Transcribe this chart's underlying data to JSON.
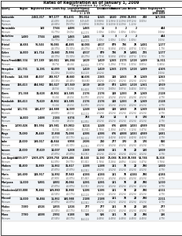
{
  "title1": "Rates of Registration as of January 1, 2009",
  "title2": "Registration by County",
  "col_headers_line1": [
    "County",
    "Region",
    "Registered",
    "Dem. Leads",
    "Rep. Leads",
    "Unaffiliated",
    "Green",
    "Libertarian",
    "Natural Law",
    "Reform",
    "Other",
    "Registered %"
  ],
  "col_headers_line2": [
    "",
    "",
    "",
    "",
    "",
    "(Independent)",
    "",
    "",
    "",
    "",
    "",
    "change"
  ],
  "col_headers_line3": [
    "",
    "",
    "",
    "",
    "",
    "1 / 1/ 09",
    "",
    "",
    "",
    "",
    "",
    "1998-2009"
  ],
  "groups": [
    {
      "name": "Statewide",
      "rows": [
        [
          "Statewide",
          "",
          "2,462,317",
          "997,177",
          "651,431",
          "725,014",
          "8,345",
          "3,040",
          "2,996",
          "23,893",
          "248",
          "167,164"
        ],
        [
          "Minimum",
          "",
          "",
          "(40.49%)",
          "(26.46%)",
          "($29,447)",
          "(0.3388%)",
          "(0.1236%)",
          "(0.1219%)",
          "(0.9712%)",
          "(0.01%)",
          ""
        ],
        [
          "Maximum",
          "",
          "",
          "(43.84%)",
          "(28.57%)",
          "(1.5049%)",
          "(0.3619%)",
          "(0.1415%)",
          "(0.1219%)",
          "(1.22%)",
          "",
          ""
        ]
      ]
    },
    {
      "name": "Barnstable",
      "rows": [
        [
          "Barnstable",
          "",
          "160",
          "7,744",
          "4,486",
          "1,465",
          "11",
          "3",
          "2",
          "2",
          "",
          "444"
        ],
        [
          "Minimum",
          "",
          "",
          "(32.77%)",
          "(19.0%)",
          "($2,177)",
          "(1.00%)",
          "(1.00%)",
          "(1.00%)",
          "(1.00%)",
          "",
          "(100%)"
        ]
      ]
    },
    {
      "name": "Berkshire",
      "rows": [
        [
          "Berkshire",
          "1,480",
          "7,744",
          "4,486",
          "1,465",
          "1,465",
          "11",
          "3",
          "2",
          "2",
          "",
          "444"
        ],
        [
          "Minimum",
          "",
          "",
          "(32.77%)",
          "(19.0%)",
          "($2,177)",
          "(1.00%)",
          "(1.00%)",
          "(1.00%)",
          "(1.00%)",
          "",
          "(100%)"
        ]
      ]
    },
    {
      "name": "Bristol",
      "rows": [
        [
          "Bristol",
          "10,684",
          "96,544",
          "93,086",
          "44,485",
          "$3,086",
          "4,617",
          "879",
          "736",
          "28",
          "1,481",
          "1,177"
        ],
        [
          "Minimum",
          "",
          "",
          "(44.37%)",
          "(22.32%)",
          "(44.27%)",
          "(4.71%)",
          "(5.58%)",
          "(4.91%)",
          "(4.07%)",
          "(1.91%)",
          "(1.7%)"
        ]
      ]
    },
    {
      "name": "Dukes",
      "rows": [
        [
          "Dukes",
          "16,000",
          "101,714",
          "21,660",
          "20,994",
          "4,517",
          "879",
          "736",
          "28",
          "1,481",
          "205",
          "1,177"
        ],
        [
          "Minimum",
          "",
          "",
          "(44.37%)",
          "(22.32%)",
          "(44.27%)",
          "(4.71%)",
          "(5.58%)",
          "(4.91%)",
          "(4.07%)",
          "(1.91%)",
          "(1.7%)"
        ]
      ]
    },
    {
      "name": "Essex/Franklin",
      "rows": [
        [
          "Essex/Franklin",
          "328,334",
          "127,189",
          "110,011",
          "106,284",
          "1,629",
          "1,429",
          "1,265",
          "2,175",
          "1,318",
          "1,489",
          "11,311"
        ],
        [
          "Minimum",
          "",
          "",
          "(38.7%)",
          "(44.4%)",
          "($4,103)",
          "(1.87%)",
          "(1.29%)",
          "(2.75%)",
          "(1.03%)",
          "(0.85%)",
          "(1.86%)"
        ]
      ]
    },
    {
      "name": "Hampden",
      "rows": [
        [
          "Hampden",
          "141,731",
          "11,291",
          "62,699",
          "5,574",
          "1,429",
          "1,429",
          "1,265",
          "2,175",
          "1,318",
          "1,489",
          "4,105"
        ],
        [
          "Minimum",
          "",
          "",
          "(21.22%)",
          "(22.82%)",
          "($2,113)",
          "(4.52%)",
          "",
          "",
          "",
          "",
          "(100%)"
        ]
      ]
    },
    {
      "name": "El Dorado",
      "rows": [
        [
          "El Dorado",
          "114,368",
          "48,007",
          "248,917",
          "49,660",
          "$8,636",
          "2,265",
          "148",
          "1,063",
          "28",
          "1,269",
          "3,263"
        ],
        [
          "Minimum",
          "",
          "",
          "(43.14%)",
          "(43.44%)",
          "($8,636)",
          "(4.52%)",
          "(4.52%)",
          "(4.52%)",
          "(4.52%)",
          "(4.52%)",
          "(4.7%)"
        ]
      ]
    },
    {
      "name": "Fresno",
      "rows": [
        [
          "Fresno",
          "360,413",
          "484,982",
          "350,527",
          "137,569",
          "3,619",
          "3,619",
          "873",
          "1,283",
          "1,318",
          "1,361",
          "3,919"
        ],
        [
          "Minimum",
          "",
          "",
          "(44.5%)",
          "(32.2%)",
          "($2,413)",
          "(3.32%)",
          "(0.80%)",
          "(0.87%)",
          "(0.44%)",
          "(0.87%)",
          "(3.9%)"
        ]
      ]
    },
    {
      "name": "Glenn",
      "rows": [
        [
          "Glenn",
          "171,368",
          "31,628",
          "43,902",
          "103,585",
          "2,176",
          "2,176",
          "148",
          "1,283",
          "29",
          "1,269",
          "2,128"
        ],
        [
          "Minimum",
          "",
          "",
          "(35.4%)",
          "(49.4%)",
          "($2,075)",
          "(4.52%)",
          "(4.52%)",
          "(4.52%)",
          "(4.52%)",
          "(4.52%)",
          "(4.7%)"
        ]
      ]
    },
    {
      "name": "Humboldt",
      "rows": [
        [
          "Humboldt",
          "360,413",
          "71,629",
          "43,902",
          "103,585",
          "2,176",
          "2,176",
          "148",
          "1,283",
          "29",
          "1,269",
          "2,128"
        ],
        [
          "Minimum",
          "",
          "",
          "(35.4%)",
          "(49.4%)",
          "($2,075)",
          "(4.52%)",
          "(4.52%)",
          "(4.52%)",
          "(4.52%)",
          "(4.52%)",
          "(4.7%)"
        ]
      ]
    },
    {
      "name": "Imperial",
      "rows": [
        [
          "Imperial",
          "141,731",
          "146,477",
          "134,888",
          "16,589",
          "1,248",
          "1,248",
          "148",
          "1,063",
          "28",
          "1,269",
          "3,111"
        ],
        [
          "Minimum",
          "",
          "",
          "(49.88%)",
          "(48.1%)",
          "($2,111)",
          "(4.52%)",
          "(4.52%)",
          "(4.52%)",
          "(4.52%)",
          "(4.52%)",
          "(4.7%)"
        ]
      ]
    },
    {
      "name": "Inyo",
      "rows": [
        [
          "Inyo",
          "16,000",
          "2,488",
          "2,184",
          "6,374",
          "283",
          "262",
          "14",
          "0",
          "0",
          "170",
          "283"
        ],
        [
          "Minimum",
          "",
          "",
          "(35.4%)",
          "(49.4%)",
          "($2,075)",
          "(4.52%)",
          "(4.52%)",
          "(4.52%)",
          "(4.52%)",
          "(4.52%)",
          "(4.7%)"
        ]
      ]
    },
    {
      "name": "Kern",
      "rows": [
        [
          "Kern",
          "1,090,026",
          "355,994",
          "189,981",
          "(19,981)",
          "8,224",
          "3,248",
          "676",
          "4,888",
          "1,083",
          "4,989",
          "3,792"
        ],
        [
          "Minimum",
          "",
          "",
          "(32.5%)",
          "(48.96%)",
          "($1,961)",
          "(1.78%)",
          "(1.30%)",
          "(4.47%)",
          "(3.12%)",
          "(3.47%)",
          "(3.9%)"
        ]
      ]
    },
    {
      "name": "Kings",
      "rows": [
        [
          "Kings",
          "73,090",
          "28,449",
          "17,888",
          "71,098",
          "4,386",
          "4,386",
          "676",
          "4,888",
          "1,083",
          "4,989",
          "1,681"
        ],
        [
          "Minimum",
          "",
          "",
          "(42.5%)",
          "(40.17%)",
          "($4,311)",
          "(4.42%)",
          "(4.42%)",
          "(4.42%)",
          "(4.42%)",
          "(4.42%)",
          "(4.7%)"
        ]
      ]
    },
    {
      "name": "Lake",
      "rows": [
        [
          "Lake",
          "22,000",
          "198,017",
          "41,844",
          "6,998",
          "2,086",
          "210",
          "277",
          "170",
          "21",
          "170",
          "810"
        ],
        [
          "Minimum",
          "",
          "",
          "(47.90%)",
          "(41.30%)",
          "($2,191)",
          "(4.52%)",
          "(4.52%)",
          "(4.52%)",
          "(4.52%)",
          "(4.52%)",
          "(4.7%)"
        ]
      ]
    },
    {
      "name": "Lassen",
      "rows": [
        [
          "Lassen",
          "22,000",
          "37,629",
          "14,007",
          "5,208",
          "2,269",
          "1,008",
          "181",
          "70",
          "22",
          "180",
          "1,009"
        ],
        [
          "Minimum",
          "",
          "",
          "(47.87%)",
          "(47.87%)",
          "($2,191)",
          "(4.52%)",
          "(4.52%)",
          "(4.52%)",
          "(4.52%)",
          "(4.52%)",
          "(4.7%)"
        ]
      ]
    },
    {
      "name": "Los Angeles",
      "rows": [
        [
          "Los Angeles",
          "3,659,077",
          "1,905,875",
          "1,088,750",
          "1,088,466",
          "43,148",
          "11,160",
          "20,086",
          "70,168",
          "28,588",
          "53,786",
          "31,318"
        ],
        [
          "Minimum",
          "",
          "",
          "(52.07%)",
          "(29.77%)",
          "($7,361)",
          "(1.78%)",
          "(2.28%)",
          "(4.69%)",
          "(3.14%)",
          "(3.47%)",
          "(3.78%)"
        ]
      ]
    },
    {
      "name": "Madera",
      "rows": [
        [
          "Madera",
          "80,400",
          "31,889",
          "11,862",
          "31,817",
          "3,188",
          "1,188",
          "181",
          "70",
          "22",
          "280",
          "1,000"
        ],
        [
          "Minimum",
          "",
          "",
          "(47.87%)",
          "(47.87%)",
          "($2,191)",
          "(4.52%)",
          "(4.52%)",
          "(4.52%)",
          "(4.52%)",
          "(4.52%)",
          "(4.7%)"
        ]
      ]
    },
    {
      "name": "Marin",
      "rows": [
        [
          "Marin",
          "150,490",
          "148,917",
          "11,892",
          "37,940",
          "4,184",
          "4,184",
          "181",
          "70",
          "4,184",
          "280",
          "4,184"
        ],
        [
          "Minimum",
          "",
          "",
          "(47.90%)",
          "(41.87%)",
          "($7,492)",
          "(4.52%)",
          "(4.52%)",
          "(4.52%)",
          "(4.52%)",
          "(4.52%)",
          "(4.7%)"
        ]
      ]
    },
    {
      "name": "Mariposa",
      "rows": [
        [
          "Mariposa",
          "11,000",
          "5,881",
          "3,882",
          "24,084",
          "3,281",
          "3,281",
          "181",
          "70",
          "22",
          "280",
          "1,210"
        ],
        [
          "Minimum",
          "",
          "",
          "(47.87%)",
          "(45.87%)",
          "($2,191)",
          "(4.52%)",
          "(4.52%)",
          "(4.52%)",
          "(4.52%)",
          "(4.52%)",
          "(4.7%)"
        ]
      ]
    },
    {
      "name": "Mendocino",
      "rows": [
        [
          "Mendocino",
          "3,410,800",
          "70,484",
          "169,880",
          "30,888",
          "5,186",
          "5,186",
          "181",
          "70",
          "22",
          "280",
          "4,111"
        ],
        [
          "Minimum",
          "",
          "",
          "(42.54%)",
          "(42.17%)",
          "($2,113)",
          "(4.52%)",
          "(4.52%)",
          "(4.52%)",
          "(4.52%)",
          "(4.52%)",
          "(4.7%)"
        ]
      ]
    },
    {
      "name": "Merced",
      "rows": [
        [
          "Merced",
          "11,000",
          "59,484",
          "11,862",
          "100,988",
          "2,188",
          "2,188",
          "181",
          "70",
          "22",
          "280",
          "2,211"
        ],
        [
          "Minimum",
          "",
          "",
          "(47.87%)",
          "(45.87%)",
          "($2,191)",
          "(4.52%)",
          "(4.52%)",
          "(4.52%)",
          "(4.52%)",
          "(4.52%)",
          "(4.7%)"
        ]
      ]
    },
    {
      "name": "Modoc",
      "rows": [
        [
          "Modoc",
          "7,380",
          "4,526",
          "1,855",
          "1,326",
          "277",
          "277",
          "181",
          "70",
          "22",
          "180",
          "277"
        ],
        [
          "Minimum",
          "",
          "",
          "(42.54%)",
          "(42.17%)",
          "($2,111)",
          "(4.52%)",
          "(4.52%)",
          "(4.52%)",
          "(4.52%)",
          "(4.52%)",
          "(4.7%)"
        ]
      ]
    },
    {
      "name": "Mono",
      "rows": [
        [
          "Mono",
          "7,780",
          "4,088",
          "2,992",
          "6,188",
          "586",
          "586",
          "181",
          "70",
          "22",
          "286",
          "186"
        ],
        [
          "Minimum",
          "",
          "",
          "(47.54%)",
          "(44.17%)",
          "($4,111)",
          "(4.48%)",
          "(4.48%)",
          "(4.48%)",
          "(4.48%)",
          "(4.48%)",
          "(4.7%)"
        ]
      ]
    }
  ]
}
